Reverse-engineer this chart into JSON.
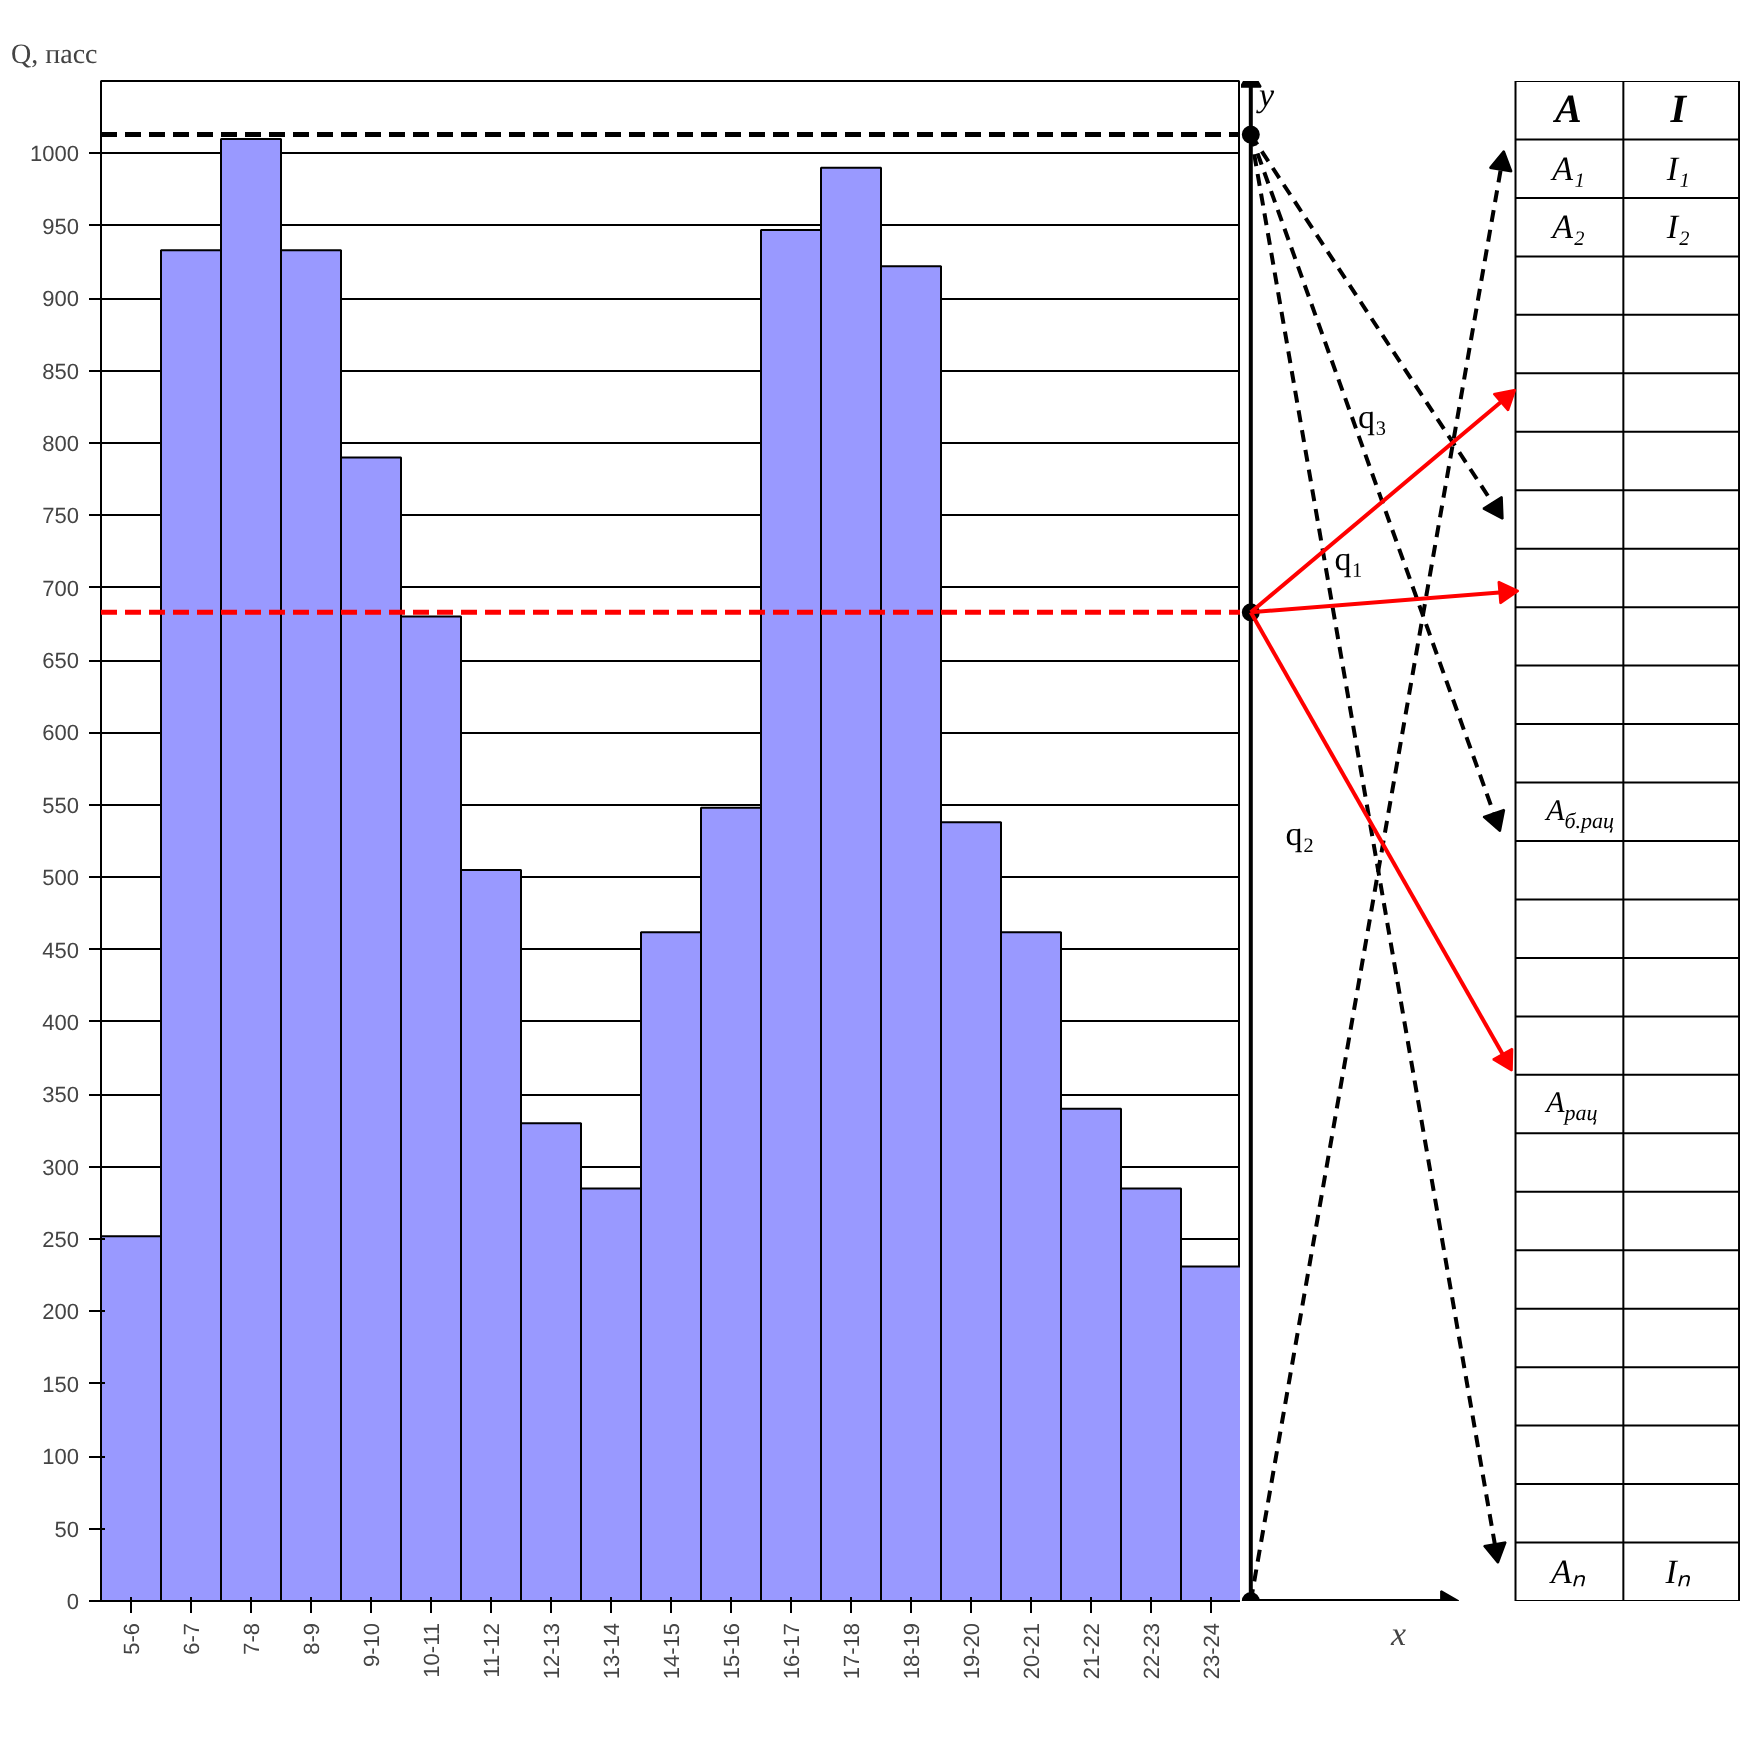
{
  "chart_data": {
    "type": "bar",
    "ylabel": "Q, пасс",
    "categories": [
      "5-6",
      "6-7",
      "7-8",
      "8-9",
      "9-10",
      "10-11",
      "11-12",
      "12-13",
      "13-14",
      "14-15",
      "15-16",
      "16-17",
      "17-18",
      "18-19",
      "19-20",
      "20-21",
      "21-22",
      "22-23",
      "23-24"
    ],
    "values": [
      252,
      933,
      1010,
      933,
      790,
      680,
      505,
      330,
      285,
      462,
      548,
      947,
      990,
      922,
      538,
      462,
      340,
      285,
      231
    ],
    "color": "#9999ff",
    "ylim": [
      0,
      1050
    ],
    "yticks": [
      0,
      50,
      100,
      150,
      200,
      250,
      300,
      350,
      400,
      450,
      500,
      550,
      600,
      650,
      700,
      750,
      800,
      850,
      900,
      950,
      1000
    ],
    "grid": "y",
    "ref_lines": [
      {
        "axis": "y",
        "value": 1013,
        "color": "#000000",
        "line_style": "dashed"
      },
      {
        "axis": "y",
        "value": 683,
        "color": "#ff0000",
        "line_style": "dashed"
      }
    ],
    "annotations": [
      "y",
      "x",
      "q₃",
      "q₁",
      "q₂",
      "A",
      "I",
      "A₁",
      "I₁",
      "A₂",
      "I₂",
      "A$_{б.рац}$",
      "A$_{рац}$",
      "Aₙ",
      "Iₙ"
    ]
  }
}
